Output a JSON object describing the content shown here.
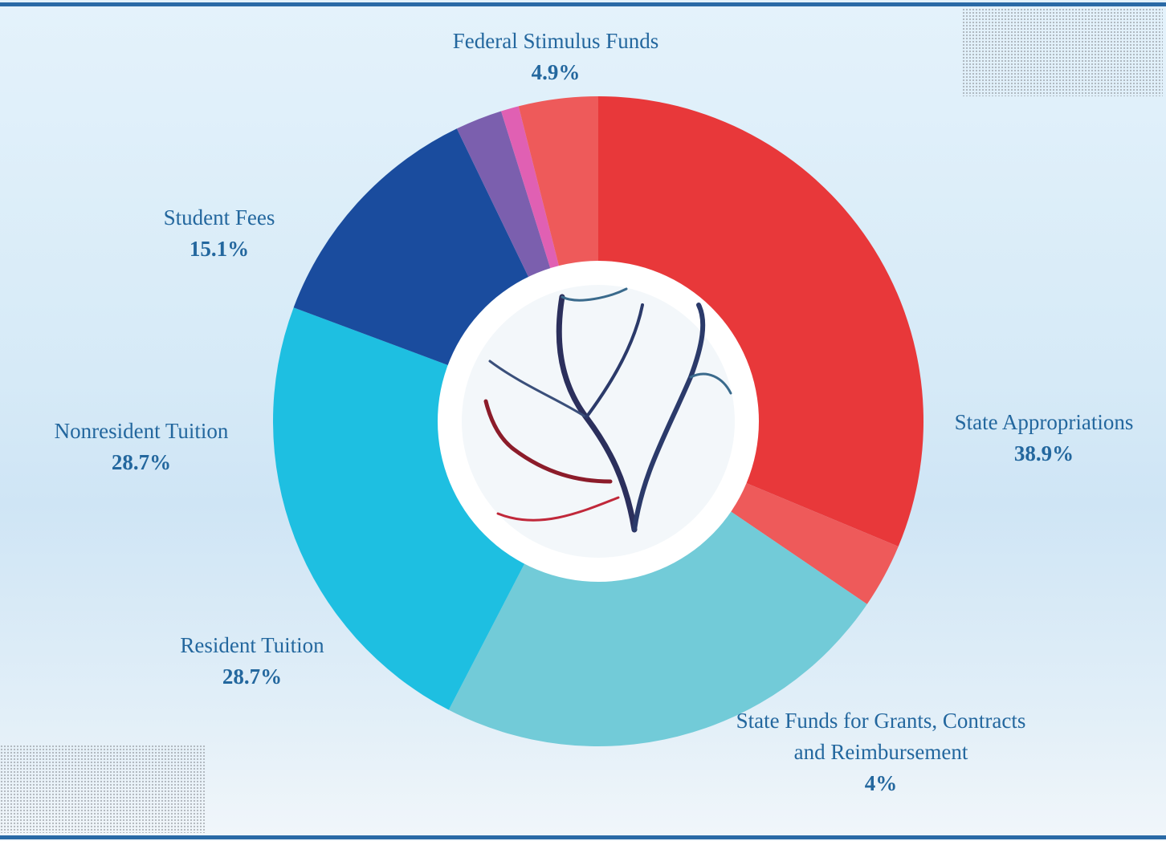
{
  "chart_data": {
    "type": "donut",
    "categories": [
      "State Appropriations",
      "State Funds for Grants, Contracts and Reimbursement",
      "Resident Tuition",
      "Nonresident Tuition",
      "Student Fees",
      null,
      null,
      "Federal Stimulus Funds"
    ],
    "values": [
      38.9,
      4,
      28.7,
      28.7,
      15.1,
      2.9,
      1.1,
      4.9
    ],
    "value_labels": [
      "38.9%",
      "4%",
      "28.7%",
      "28.7%",
      "15.1%",
      null,
      null,
      "4.9%"
    ],
    "colors": [
      "#e8383a",
      "#ee5a5a",
      "#72cbd8",
      "#1ebfe1",
      "#1a4c9e",
      "#7b5fae",
      "#e060b3",
      "#ee5a5a"
    ]
  }
}
